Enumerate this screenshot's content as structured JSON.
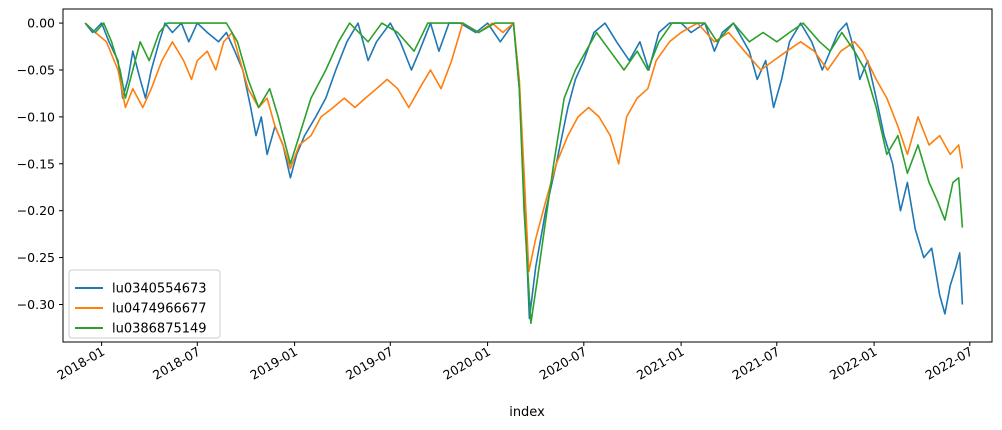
{
  "chart_data": {
    "type": "line",
    "xlabel": "index",
    "ylabel": "",
    "title": "",
    "xlim": [
      "2017-10-20",
      "2022-08-12"
    ],
    "ylim": [
      -0.34,
      0.015
    ],
    "x_ticks": [
      {
        "date": "2018-01-01",
        "label": "2018-01"
      },
      {
        "date": "2018-07-01",
        "label": "2018-07"
      },
      {
        "date": "2019-01-01",
        "label": "2019-01"
      },
      {
        "date": "2019-07-01",
        "label": "2019-07"
      },
      {
        "date": "2020-01-01",
        "label": "2020-01"
      },
      {
        "date": "2020-07-01",
        "label": "2020-07"
      },
      {
        "date": "2021-01-01",
        "label": "2021-01"
      },
      {
        "date": "2021-07-01",
        "label": "2021-07"
      },
      {
        "date": "2022-01-01",
        "label": "2022-01"
      },
      {
        "date": "2022-07-01",
        "label": "2022-07"
      }
    ],
    "y_ticks": [
      {
        "value": 0.0,
        "label": "0.00"
      },
      {
        "value": -0.05,
        "label": "−0.05"
      },
      {
        "value": -0.1,
        "label": "−0.10"
      },
      {
        "value": -0.15,
        "label": "−0.15"
      },
      {
        "value": -0.2,
        "label": "−0.20"
      },
      {
        "value": -0.25,
        "label": "−0.25"
      },
      {
        "value": -0.3,
        "label": "−0.30"
      }
    ],
    "grid": false,
    "legend_position": "bottom-left",
    "series": [
      {
        "name": "lu0340554673",
        "color": "#1f77b4",
        "points": [
          [
            "2017-12-01",
            0.0
          ],
          [
            "2017-12-15",
            -0.01
          ],
          [
            "2018-01-01",
            0.0
          ],
          [
            "2018-01-15",
            -0.02
          ],
          [
            "2018-02-01",
            -0.04
          ],
          [
            "2018-02-10",
            -0.08
          ],
          [
            "2018-02-20",
            -0.06
          ],
          [
            "2018-03-01",
            -0.03
          ],
          [
            "2018-03-15",
            -0.06
          ],
          [
            "2018-03-25",
            -0.08
          ],
          [
            "2018-04-05",
            -0.05
          ],
          [
            "2018-04-20",
            -0.02
          ],
          [
            "2018-05-01",
            0.0
          ],
          [
            "2018-05-15",
            -0.01
          ],
          [
            "2018-06-01",
            0.0
          ],
          [
            "2018-06-15",
            -0.02
          ],
          [
            "2018-07-01",
            0.0
          ],
          [
            "2018-07-20",
            -0.01
          ],
          [
            "2018-08-10",
            -0.02
          ],
          [
            "2018-08-25",
            -0.01
          ],
          [
            "2018-09-10",
            -0.03
          ],
          [
            "2018-09-25",
            -0.05
          ],
          [
            "2018-10-10",
            -0.09
          ],
          [
            "2018-10-20",
            -0.12
          ],
          [
            "2018-10-30",
            -0.1
          ],
          [
            "2018-11-10",
            -0.14
          ],
          [
            "2018-11-25",
            -0.11
          ],
          [
            "2018-12-10",
            -0.13
          ],
          [
            "2018-12-24",
            -0.165
          ],
          [
            "2019-01-05",
            -0.14
          ],
          [
            "2019-01-20",
            -0.12
          ],
          [
            "2019-02-10",
            -0.1
          ],
          [
            "2019-03-01",
            -0.08
          ],
          [
            "2019-03-20",
            -0.05
          ],
          [
            "2019-04-10",
            -0.02
          ],
          [
            "2019-05-01",
            0.0
          ],
          [
            "2019-05-20",
            -0.04
          ],
          [
            "2019-06-05",
            -0.02
          ],
          [
            "2019-07-01",
            0.0
          ],
          [
            "2019-07-20",
            -0.02
          ],
          [
            "2019-08-10",
            -0.05
          ],
          [
            "2019-08-25",
            -0.03
          ],
          [
            "2019-09-15",
            0.0
          ],
          [
            "2019-10-01",
            -0.03
          ],
          [
            "2019-10-20",
            0.0
          ],
          [
            "2019-11-10",
            0.0
          ],
          [
            "2019-12-10",
            -0.01
          ],
          [
            "2020-01-01",
            0.0
          ],
          [
            "2020-01-25",
            -0.02
          ],
          [
            "2020-02-19",
            0.0
          ],
          [
            "2020-03-01",
            -0.07
          ],
          [
            "2020-03-10",
            -0.18
          ],
          [
            "2020-03-20",
            -0.315
          ],
          [
            "2020-04-01",
            -0.26
          ],
          [
            "2020-04-20",
            -0.2
          ],
          [
            "2020-05-10",
            -0.15
          ],
          [
            "2020-06-01",
            -0.09
          ],
          [
            "2020-06-15",
            -0.06
          ],
          [
            "2020-07-01",
            -0.04
          ],
          [
            "2020-07-20",
            -0.01
          ],
          [
            "2020-08-10",
            0.0
          ],
          [
            "2020-09-01",
            -0.02
          ],
          [
            "2020-09-25",
            -0.04
          ],
          [
            "2020-10-15",
            -0.02
          ],
          [
            "2020-11-01",
            -0.05
          ],
          [
            "2020-11-20",
            -0.01
          ],
          [
            "2020-12-10",
            0.0
          ],
          [
            "2021-01-01",
            0.0
          ],
          [
            "2021-01-20",
            -0.01
          ],
          [
            "2021-02-15",
            0.0
          ],
          [
            "2021-03-05",
            -0.03
          ],
          [
            "2021-03-20",
            -0.01
          ],
          [
            "2021-04-10",
            0.0
          ],
          [
            "2021-05-10",
            -0.03
          ],
          [
            "2021-05-25",
            -0.06
          ],
          [
            "2021-06-10",
            -0.04
          ],
          [
            "2021-06-25",
            -0.09
          ],
          [
            "2021-07-10",
            -0.06
          ],
          [
            "2021-07-25",
            -0.02
          ],
          [
            "2021-08-15",
            0.0
          ],
          [
            "2021-09-05",
            -0.02
          ],
          [
            "2021-09-25",
            -0.05
          ],
          [
            "2021-10-10",
            -0.03
          ],
          [
            "2021-10-25",
            -0.01
          ],
          [
            "2021-11-10",
            0.0
          ],
          [
            "2021-11-25",
            -0.03
          ],
          [
            "2021-12-05",
            -0.06
          ],
          [
            "2021-12-20",
            -0.04
          ],
          [
            "2022-01-05",
            -0.08
          ],
          [
            "2022-01-20",
            -0.12
          ],
          [
            "2022-02-05",
            -0.15
          ],
          [
            "2022-02-20",
            -0.2
          ],
          [
            "2022-03-05",
            -0.17
          ],
          [
            "2022-03-20",
            -0.22
          ],
          [
            "2022-04-05",
            -0.25
          ],
          [
            "2022-04-20",
            -0.24
          ],
          [
            "2022-05-05",
            -0.29
          ],
          [
            "2022-05-15",
            -0.31
          ],
          [
            "2022-05-25",
            -0.28
          ],
          [
            "2022-06-05",
            -0.26
          ],
          [
            "2022-06-12",
            -0.245
          ],
          [
            "2022-06-17",
            -0.3
          ]
        ]
      },
      {
        "name": "lu0474966677",
        "color": "#ff7f0e",
        "points": [
          [
            "2017-12-01",
            0.0
          ],
          [
            "2017-12-20",
            -0.01
          ],
          [
            "2018-01-10",
            -0.02
          ],
          [
            "2018-02-01",
            -0.05
          ],
          [
            "2018-02-15",
            -0.09
          ],
          [
            "2018-03-01",
            -0.07
          ],
          [
            "2018-03-20",
            -0.09
          ],
          [
            "2018-04-05",
            -0.07
          ],
          [
            "2018-04-25",
            -0.04
          ],
          [
            "2018-05-15",
            -0.02
          ],
          [
            "2018-06-05",
            -0.04
          ],
          [
            "2018-06-20",
            -0.06
          ],
          [
            "2018-07-01",
            -0.04
          ],
          [
            "2018-07-20",
            -0.03
          ],
          [
            "2018-08-05",
            -0.05
          ],
          [
            "2018-08-20",
            -0.02
          ],
          [
            "2018-09-05",
            -0.01
          ],
          [
            "2018-09-20",
            -0.04
          ],
          [
            "2018-10-05",
            -0.07
          ],
          [
            "2018-10-25",
            -0.09
          ],
          [
            "2018-11-10",
            -0.08
          ],
          [
            "2018-11-25",
            -0.11
          ],
          [
            "2018-12-10",
            -0.13
          ],
          [
            "2018-12-24",
            -0.155
          ],
          [
            "2019-01-10",
            -0.13
          ],
          [
            "2019-02-01",
            -0.12
          ],
          [
            "2019-02-20",
            -0.1
          ],
          [
            "2019-03-15",
            -0.09
          ],
          [
            "2019-04-05",
            -0.08
          ],
          [
            "2019-04-25",
            -0.09
          ],
          [
            "2019-05-15",
            -0.08
          ],
          [
            "2019-06-05",
            -0.07
          ],
          [
            "2019-06-25",
            -0.06
          ],
          [
            "2019-07-15",
            -0.07
          ],
          [
            "2019-08-05",
            -0.09
          ],
          [
            "2019-08-25",
            -0.07
          ],
          [
            "2019-09-15",
            -0.05
          ],
          [
            "2019-10-05",
            -0.07
          ],
          [
            "2019-10-25",
            -0.04
          ],
          [
            "2019-11-15",
            0.0
          ],
          [
            "2019-12-15",
            -0.01
          ],
          [
            "2020-01-10",
            0.0
          ],
          [
            "2020-01-30",
            -0.01
          ],
          [
            "2020-02-19",
            0.0
          ],
          [
            "2020-03-01",
            -0.06
          ],
          [
            "2020-03-10",
            -0.16
          ],
          [
            "2020-03-19",
            -0.265
          ],
          [
            "2020-04-01",
            -0.23
          ],
          [
            "2020-04-20",
            -0.19
          ],
          [
            "2020-05-10",
            -0.15
          ],
          [
            "2020-06-01",
            -0.12
          ],
          [
            "2020-06-20",
            -0.1
          ],
          [
            "2020-07-10",
            -0.09
          ],
          [
            "2020-07-30",
            -0.1
          ],
          [
            "2020-08-20",
            -0.12
          ],
          [
            "2020-09-05",
            -0.15
          ],
          [
            "2020-09-20",
            -0.1
          ],
          [
            "2020-10-10",
            -0.08
          ],
          [
            "2020-10-30",
            -0.07
          ],
          [
            "2020-11-15",
            -0.04
          ],
          [
            "2020-12-10",
            -0.02
          ],
          [
            "2021-01-01",
            -0.01
          ],
          [
            "2021-02-01",
            0.0
          ],
          [
            "2021-03-05",
            -0.02
          ],
          [
            "2021-04-01",
            -0.01
          ],
          [
            "2021-05-01",
            -0.03
          ],
          [
            "2021-06-01",
            -0.05
          ],
          [
            "2021-06-25",
            -0.04
          ],
          [
            "2021-07-20",
            -0.03
          ],
          [
            "2021-08-15",
            -0.02
          ],
          [
            "2021-09-10",
            -0.03
          ],
          [
            "2021-10-05",
            -0.05
          ],
          [
            "2021-10-30",
            -0.03
          ],
          [
            "2021-11-25",
            -0.02
          ],
          [
            "2021-12-10",
            -0.03
          ],
          [
            "2022-01-05",
            -0.06
          ],
          [
            "2022-01-25",
            -0.08
          ],
          [
            "2022-02-15",
            -0.11
          ],
          [
            "2022-03-05",
            -0.14
          ],
          [
            "2022-03-25",
            -0.1
          ],
          [
            "2022-04-15",
            -0.13
          ],
          [
            "2022-05-05",
            -0.12
          ],
          [
            "2022-05-25",
            -0.14
          ],
          [
            "2022-06-10",
            -0.13
          ],
          [
            "2022-06-17",
            -0.155
          ]
        ]
      },
      {
        "name": "lu0386875149",
        "color": "#2ca02c",
        "points": [
          [
            "2017-12-01",
            0.0
          ],
          [
            "2017-12-20",
            -0.01
          ],
          [
            "2018-01-05",
            0.0
          ],
          [
            "2018-01-20",
            -0.02
          ],
          [
            "2018-02-05",
            -0.05
          ],
          [
            "2018-02-15",
            -0.08
          ],
          [
            "2018-03-01",
            -0.05
          ],
          [
            "2018-03-15",
            -0.02
          ],
          [
            "2018-04-01",
            -0.04
          ],
          [
            "2018-04-20",
            -0.01
          ],
          [
            "2018-05-05",
            0.0
          ],
          [
            "2018-06-01",
            0.0
          ],
          [
            "2018-07-01",
            0.0
          ],
          [
            "2018-08-01",
            0.0
          ],
          [
            "2018-08-25",
            0.0
          ],
          [
            "2018-09-15",
            -0.02
          ],
          [
            "2018-10-05",
            -0.06
          ],
          [
            "2018-10-25",
            -0.09
          ],
          [
            "2018-11-15",
            -0.07
          ],
          [
            "2018-12-01",
            -0.1
          ],
          [
            "2018-12-24",
            -0.15
          ],
          [
            "2019-01-10",
            -0.12
          ],
          [
            "2019-02-01",
            -0.08
          ],
          [
            "2019-03-01",
            -0.05
          ],
          [
            "2019-03-25",
            -0.02
          ],
          [
            "2019-04-15",
            0.0
          ],
          [
            "2019-05-20",
            -0.02
          ],
          [
            "2019-06-15",
            0.0
          ],
          [
            "2019-07-15",
            -0.01
          ],
          [
            "2019-08-15",
            -0.03
          ],
          [
            "2019-09-10",
            0.0
          ],
          [
            "2019-10-10",
            0.0
          ],
          [
            "2019-11-15",
            0.0
          ],
          [
            "2019-12-15",
            -0.01
          ],
          [
            "2020-01-15",
            0.0
          ],
          [
            "2020-02-19",
            0.0
          ],
          [
            "2020-03-01",
            -0.07
          ],
          [
            "2020-03-10",
            -0.2
          ],
          [
            "2020-03-23",
            -0.32
          ],
          [
            "2020-04-05",
            -0.27
          ],
          [
            "2020-04-20",
            -0.21
          ],
          [
            "2020-05-05",
            -0.15
          ],
          [
            "2020-05-25",
            -0.08
          ],
          [
            "2020-06-15",
            -0.05
          ],
          [
            "2020-07-05",
            -0.03
          ],
          [
            "2020-07-25",
            -0.01
          ],
          [
            "2020-08-20",
            -0.03
          ],
          [
            "2020-09-15",
            -0.05
          ],
          [
            "2020-10-10",
            -0.03
          ],
          [
            "2020-10-30",
            -0.05
          ],
          [
            "2020-11-20",
            -0.02
          ],
          [
            "2020-12-15",
            0.0
          ],
          [
            "2021-01-15",
            0.0
          ],
          [
            "2021-02-15",
            0.0
          ],
          [
            "2021-03-10",
            -0.02
          ],
          [
            "2021-04-10",
            0.0
          ],
          [
            "2021-05-10",
            -0.02
          ],
          [
            "2021-06-05",
            -0.01
          ],
          [
            "2021-07-01",
            -0.02
          ],
          [
            "2021-07-25",
            -0.01
          ],
          [
            "2021-08-20",
            0.0
          ],
          [
            "2021-09-20",
            -0.02
          ],
          [
            "2021-10-10",
            -0.03
          ],
          [
            "2021-11-01",
            -0.01
          ],
          [
            "2021-11-25",
            -0.03
          ],
          [
            "2021-12-15",
            -0.05
          ],
          [
            "2022-01-05",
            -0.09
          ],
          [
            "2022-01-25",
            -0.14
          ],
          [
            "2022-02-15",
            -0.12
          ],
          [
            "2022-03-05",
            -0.16
          ],
          [
            "2022-03-25",
            -0.13
          ],
          [
            "2022-04-15",
            -0.17
          ],
          [
            "2022-05-01",
            -0.19
          ],
          [
            "2022-05-15",
            -0.21
          ],
          [
            "2022-05-30",
            -0.17
          ],
          [
            "2022-06-10",
            -0.165
          ],
          [
            "2022-06-17",
            -0.218
          ]
        ]
      }
    ]
  }
}
